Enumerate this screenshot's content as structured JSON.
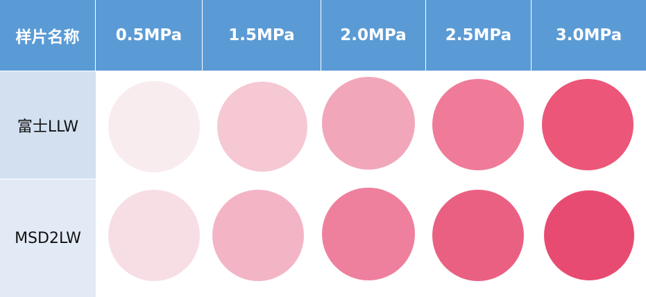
{
  "table": {
    "header": [
      "样片名称",
      "0.5MPa",
      "1.5MPa",
      "2.0MPa",
      "2.5MPa",
      "3.0MPa"
    ],
    "rows": [
      {
        "label": "富士LLW"
      },
      {
        "label": "MSD2LW"
      }
    ]
  }
}
